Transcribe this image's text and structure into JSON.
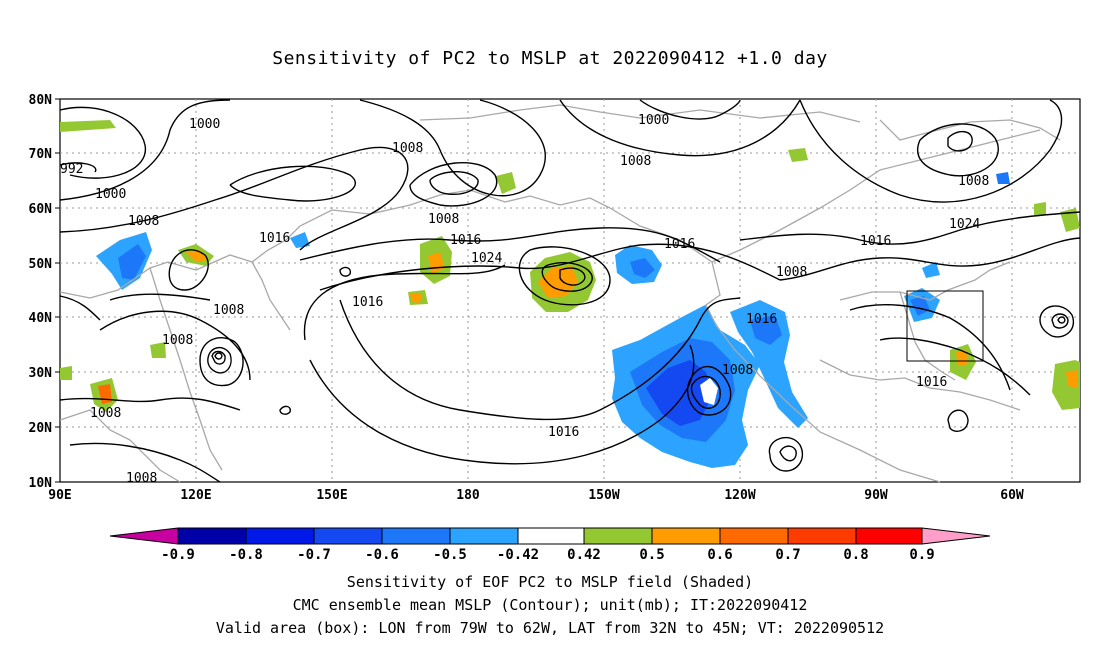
{
  "title": "Sensitivity of PC2 to MSLP at 2022090412 +1.0 day",
  "map": {
    "lon_labels": [
      "90E",
      "120E",
      "150E",
      "180",
      "150W",
      "120W",
      "90W",
      "60W"
    ],
    "lat_labels": [
      "80N",
      "70N",
      "60N",
      "50N",
      "40N",
      "30N",
      "20N",
      "10N"
    ],
    "contour_labels": [
      {
        "text": "1000"
      },
      {
        "text": "1000"
      },
      {
        "text": "992"
      },
      {
        "text": "1000"
      },
      {
        "text": "1008"
      },
      {
        "text": "1008"
      },
      {
        "text": "1008"
      },
      {
        "text": "1008"
      },
      {
        "text": "1008"
      },
      {
        "text": "1008"
      },
      {
        "text": "1008"
      },
      {
        "text": "1008"
      },
      {
        "text": "1008"
      },
      {
        "text": "1008"
      },
      {
        "text": "1016"
      },
      {
        "text": "1016"
      },
      {
        "text": "1016"
      },
      {
        "text": "1016"
      },
      {
        "text": "1016"
      },
      {
        "text": "1016"
      },
      {
        "text": "1016"
      },
      {
        "text": "1016"
      },
      {
        "text": "1024"
      },
      {
        "text": "1024"
      },
      {
        "text": "1008"
      }
    ],
    "valid_box": {
      "lon_min": -79,
      "lon_max": -62,
      "lat_min": 32,
      "lat_max": 45
    }
  },
  "colorbar": {
    "colors": [
      "#c8009f",
      "#0000a8",
      "#0018e8",
      "#1448f0",
      "#1c78f8",
      "#2ca4ff",
      "#00c8ff",
      "#ffffff",
      "#94c832",
      "#ff9c00",
      "#ff6a00",
      "#ff3c00",
      "#ff0000",
      "#ff9ec8"
    ],
    "labels": [
      "-0.9",
      "-0.8",
      "-0.7",
      "-0.6",
      "-0.5",
      "-0.42",
      "0.42",
      "0.5",
      "0.6",
      "0.7",
      "0.8",
      "0.9"
    ]
  },
  "footer": {
    "line1": "Sensitivity of EOF PC2 to MSLP field (Shaded)",
    "line2": "CMC ensemble mean MSLP (Contour); unit(mb); IT:2022090412",
    "line3": "Valid area (box): LON from 79W to 62W, LAT from 32N to 45N; VT: 2022090512"
  }
}
